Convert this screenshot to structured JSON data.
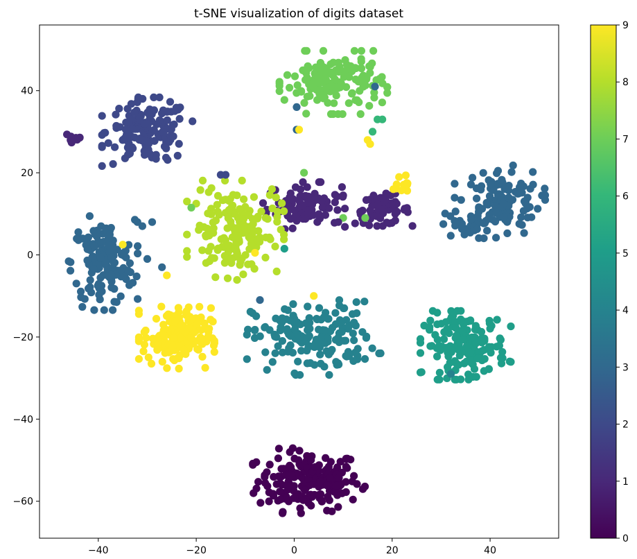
{
  "chart_data": {
    "type": "scatter",
    "title": "t-SNE visualization of digits dataset",
    "xlabel": "",
    "ylabel": "",
    "xlim": [
      -52,
      54
    ],
    "ylim": [
      -69,
      56
    ],
    "xticks": [
      -40,
      -20,
      0,
      20,
      40
    ],
    "yticks": [
      40,
      20,
      0,
      -20,
      -40,
      -60
    ],
    "colormap": "viridis",
    "colorbar": {
      "ticks": [
        0,
        1,
        2,
        3,
        4,
        5,
        6,
        7,
        8,
        9
      ],
      "min": 0,
      "max": 9
    },
    "grid": false,
    "marker_size_note": "circle",
    "clusters": [
      {
        "label": 0,
        "cx": 3,
        "cy": -55,
        "sx": 5.2,
        "sy": 3.6,
        "n": 190,
        "color": "#440154"
      },
      {
        "label": 1,
        "cx": 2,
        "cy": 12,
        "sx": 3.8,
        "sy": 2.6,
        "n": 90,
        "color": "#482878"
      },
      {
        "label": 1,
        "cx": 18,
        "cy": 11,
        "sx": 2.8,
        "sy": 1.8,
        "n": 60,
        "color": "#482878"
      },
      {
        "label": 1,
        "cx": -45,
        "cy": 28.5,
        "sx": 1.0,
        "sy": 1.0,
        "n": 12,
        "color": "#482878"
      },
      {
        "label": 2,
        "cx": -30,
        "cy": 30,
        "sx": 4.2,
        "sy": 3.8,
        "n": 150,
        "color": "#3e4989"
      },
      {
        "label": 3,
        "cx": -39,
        "cy": -2,
        "sx": 3.2,
        "sy": 5.2,
        "n": 150,
        "color": "#31688e"
      },
      {
        "label": 3,
        "cx": 42,
        "cy": 13,
        "sx": 4.2,
        "sy": 4.0,
        "n": 120,
        "color": "#31688e"
      },
      {
        "label": 3,
        "cx": 35,
        "cy": 7,
        "sx": 2.5,
        "sy": 1.6,
        "n": 25,
        "color": "#31688e"
      },
      {
        "label": 4,
        "cx": 4,
        "cy": -20,
        "sx": 6.2,
        "sy": 4.2,
        "n": 170,
        "color": "#26828e"
      },
      {
        "label": 5,
        "cx": 35,
        "cy": -22,
        "sx": 4.2,
        "sy": 3.8,
        "n": 170,
        "color": "#1f9e89"
      },
      {
        "label": 6,
        "cx": 8,
        "cy": 42,
        "sx": 5.0,
        "sy": 3.5,
        "n": 160,
        "color": "#6ece58"
      },
      {
        "label": 7,
        "cx": -12,
        "cy": 6,
        "sx": 4.5,
        "sy": 5.5,
        "n": 160,
        "color": "#b5de2b"
      },
      {
        "label": 9,
        "cx": -24,
        "cy": -20,
        "sx": 3.5,
        "sy": 3.5,
        "n": 170,
        "color": "#fde725"
      },
      {
        "label": 9,
        "cx": 22,
        "cy": 17.5,
        "sx": 0.8,
        "sy": 1.0,
        "n": 12,
        "color": "#fde725"
      }
    ],
    "outliers": [
      {
        "x": 0.5,
        "y": 36,
        "label": 3
      },
      {
        "x": 0.5,
        "y": 30.5,
        "label": 3
      },
      {
        "x": 16.5,
        "y": 41,
        "label": 3
      },
      {
        "x": -27,
        "y": -3,
        "label": 3
      },
      {
        "x": -26,
        "y": -5,
        "label": 9
      },
      {
        "x": -29,
        "y": 8,
        "label": 3
      },
      {
        "x": -31,
        "y": 7,
        "label": 3
      },
      {
        "x": -30,
        "y": -1,
        "label": 3
      },
      {
        "x": -15,
        "y": 19.5,
        "label": 2
      },
      {
        "x": -14,
        "y": 19.5,
        "label": 2
      },
      {
        "x": -7,
        "y": -11,
        "label": 3
      },
      {
        "x": 15,
        "y": 28,
        "label": 9
      },
      {
        "x": 15.5,
        "y": 27,
        "label": 9
      },
      {
        "x": 1,
        "y": 30.5,
        "label": 9
      },
      {
        "x": 16,
        "y": 30,
        "label": 6
      },
      {
        "x": 18,
        "y": 33,
        "label": 6
      },
      {
        "x": 17,
        "y": 33,
        "label": 6
      },
      {
        "x": 10,
        "y": 9,
        "label": 7
      },
      {
        "x": -2,
        "y": 1.5,
        "label": 5
      },
      {
        "x": -35,
        "y": 2.5,
        "label": 9
      },
      {
        "x": 4,
        "y": -10,
        "label": 9
      },
      {
        "x": -21,
        "y": 11.5,
        "label": 7
      },
      {
        "x": -9,
        "y": 4,
        "label": 8
      },
      {
        "x": -32,
        "y": 8,
        "label": 3
      },
      {
        "x": 14.5,
        "y": 9,
        "label": 7
      },
      {
        "x": 2,
        "y": 20,
        "label": 7
      },
      {
        "x": -8,
        "y": 0.5,
        "label": 9
      },
      {
        "x": 32,
        "y": -29,
        "label": 4
      },
      {
        "x": 9,
        "y": 8,
        "label": 1
      },
      {
        "x": 10,
        "y": 14.5,
        "label": 1
      }
    ]
  }
}
